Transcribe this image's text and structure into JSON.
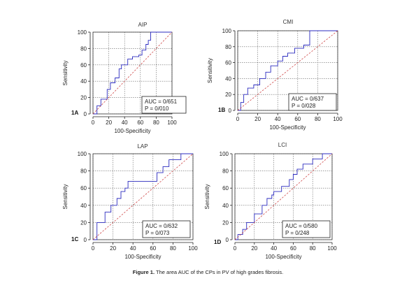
{
  "caption": {
    "label": "Figure 1.",
    "text": "The area AUC of the CPs in PV of high grades fibrosis."
  },
  "chart_data": [
    {
      "type": "line",
      "panel_id": "1A",
      "title": "AIP",
      "xlabel": "100-Specificity",
      "ylabel": "Sensitivity",
      "xlim": [
        0,
        100
      ],
      "ylim": [
        0,
        100
      ],
      "xticks": [
        0,
        20,
        40,
        60,
        80,
        100
      ],
      "yticks": [
        0,
        20,
        40,
        60,
        80,
        100
      ],
      "grid": true,
      "auc_text": "AUC = 0/651",
      "p_text": "P = 0/010",
      "series": [
        {
          "color": "#2b2bbf",
          "style": "step",
          "x": [
            0,
            5,
            5,
            10,
            10,
            18,
            18,
            22,
            22,
            28,
            28,
            33,
            33,
            36,
            36,
            44,
            44,
            50,
            50,
            58,
            58,
            62,
            62,
            67,
            67,
            70,
            70,
            73,
            73,
            76,
            76,
            100
          ],
          "y": [
            0,
            0,
            10,
            10,
            18,
            18,
            30,
            30,
            38,
            38,
            44,
            44,
            55,
            55,
            60,
            60,
            67,
            67,
            70,
            70,
            72,
            72,
            78,
            78,
            85,
            85,
            90,
            90,
            100,
            100,
            100,
            100
          ]
        },
        {
          "color": "#c83030",
          "style": "dash",
          "x": [
            0,
            100
          ],
          "y": [
            0,
            100
          ]
        }
      ]
    },
    {
      "type": "line",
      "panel_id": "1B",
      "title": "CMI",
      "xlabel": "100-Specificity",
      "ylabel": "Sensitivity",
      "xlim": [
        0,
        100
      ],
      "ylim": [
        0,
        100
      ],
      "xticks": [
        0,
        20,
        40,
        60,
        80,
        100
      ],
      "yticks": [
        0,
        20,
        40,
        60,
        80,
        100
      ],
      "grid": true,
      "auc_text": "AUC = 0/637",
      "p_text": "P = 0/028",
      "series": [
        {
          "color": "#2b2bbf",
          "style": "step",
          "x": [
            0,
            3,
            3,
            6,
            6,
            10,
            10,
            16,
            16,
            22,
            22,
            28,
            28,
            33,
            33,
            40,
            40,
            45,
            45,
            50,
            50,
            57,
            57,
            66,
            66,
            72,
            72,
            100
          ],
          "y": [
            0,
            0,
            10,
            10,
            20,
            20,
            28,
            28,
            32,
            32,
            40,
            40,
            48,
            48,
            56,
            56,
            62,
            62,
            68,
            68,
            72,
            72,
            78,
            78,
            82,
            82,
            100,
            100
          ]
        },
        {
          "color": "#c83030",
          "style": "dash",
          "x": [
            0,
            100
          ],
          "y": [
            0,
            100
          ]
        }
      ]
    },
    {
      "type": "line",
      "panel_id": "1C",
      "title": "LAP",
      "xlabel": "100-Specificity",
      "ylabel": "Sensitivity",
      "xlim": [
        0,
        100
      ],
      "ylim": [
        0,
        100
      ],
      "xticks": [
        0,
        20,
        40,
        60,
        80,
        100
      ],
      "yticks": [
        0,
        20,
        40,
        60,
        80,
        100
      ],
      "grid": true,
      "auc_text": "AUC = 0/632",
      "p_text": "P = 0/073",
      "series": [
        {
          "color": "#2b2bbf",
          "style": "step",
          "x": [
            0,
            4,
            4,
            12,
            12,
            18,
            18,
            24,
            24,
            28,
            28,
            32,
            32,
            35,
            35,
            64,
            64,
            70,
            70,
            76,
            76,
            88,
            88,
            100
          ],
          "y": [
            0,
            0,
            20,
            20,
            32,
            32,
            40,
            40,
            48,
            48,
            56,
            56,
            60,
            60,
            68,
            68,
            78,
            78,
            85,
            85,
            93,
            93,
            100,
            100
          ]
        },
        {
          "color": "#c83030",
          "style": "dash",
          "x": [
            0,
            100
          ],
          "y": [
            0,
            100
          ]
        }
      ]
    },
    {
      "type": "line",
      "panel_id": "1D",
      "title": "LCI",
      "xlabel": "100-Specificity",
      "ylabel": "Sensitivity",
      "xlim": [
        0,
        100
      ],
      "ylim": [
        0,
        100
      ],
      "xticks": [
        0,
        20,
        40,
        60,
        80,
        100
      ],
      "yticks": [
        0,
        20,
        40,
        60,
        80,
        100
      ],
      "grid": true,
      "auc_text": "AUC = 0/580",
      "p_text": "P = 0/248",
      "series": [
        {
          "color": "#2b2bbf",
          "style": "step",
          "x": [
            0,
            3,
            3,
            8,
            8,
            12,
            12,
            20,
            20,
            28,
            28,
            33,
            33,
            38,
            38,
            40,
            40,
            48,
            48,
            56,
            56,
            60,
            60,
            64,
            64,
            70,
            70,
            80,
            80,
            90,
            90,
            100
          ],
          "y": [
            0,
            0,
            6,
            6,
            12,
            12,
            20,
            20,
            30,
            30,
            40,
            40,
            48,
            48,
            52,
            52,
            56,
            56,
            62,
            62,
            70,
            70,
            76,
            76,
            82,
            82,
            88,
            88,
            94,
            94,
            100,
            100
          ]
        },
        {
          "color": "#c83030",
          "style": "dash",
          "x": [
            0,
            100
          ],
          "y": [
            0,
            100
          ]
        }
      ]
    }
  ]
}
